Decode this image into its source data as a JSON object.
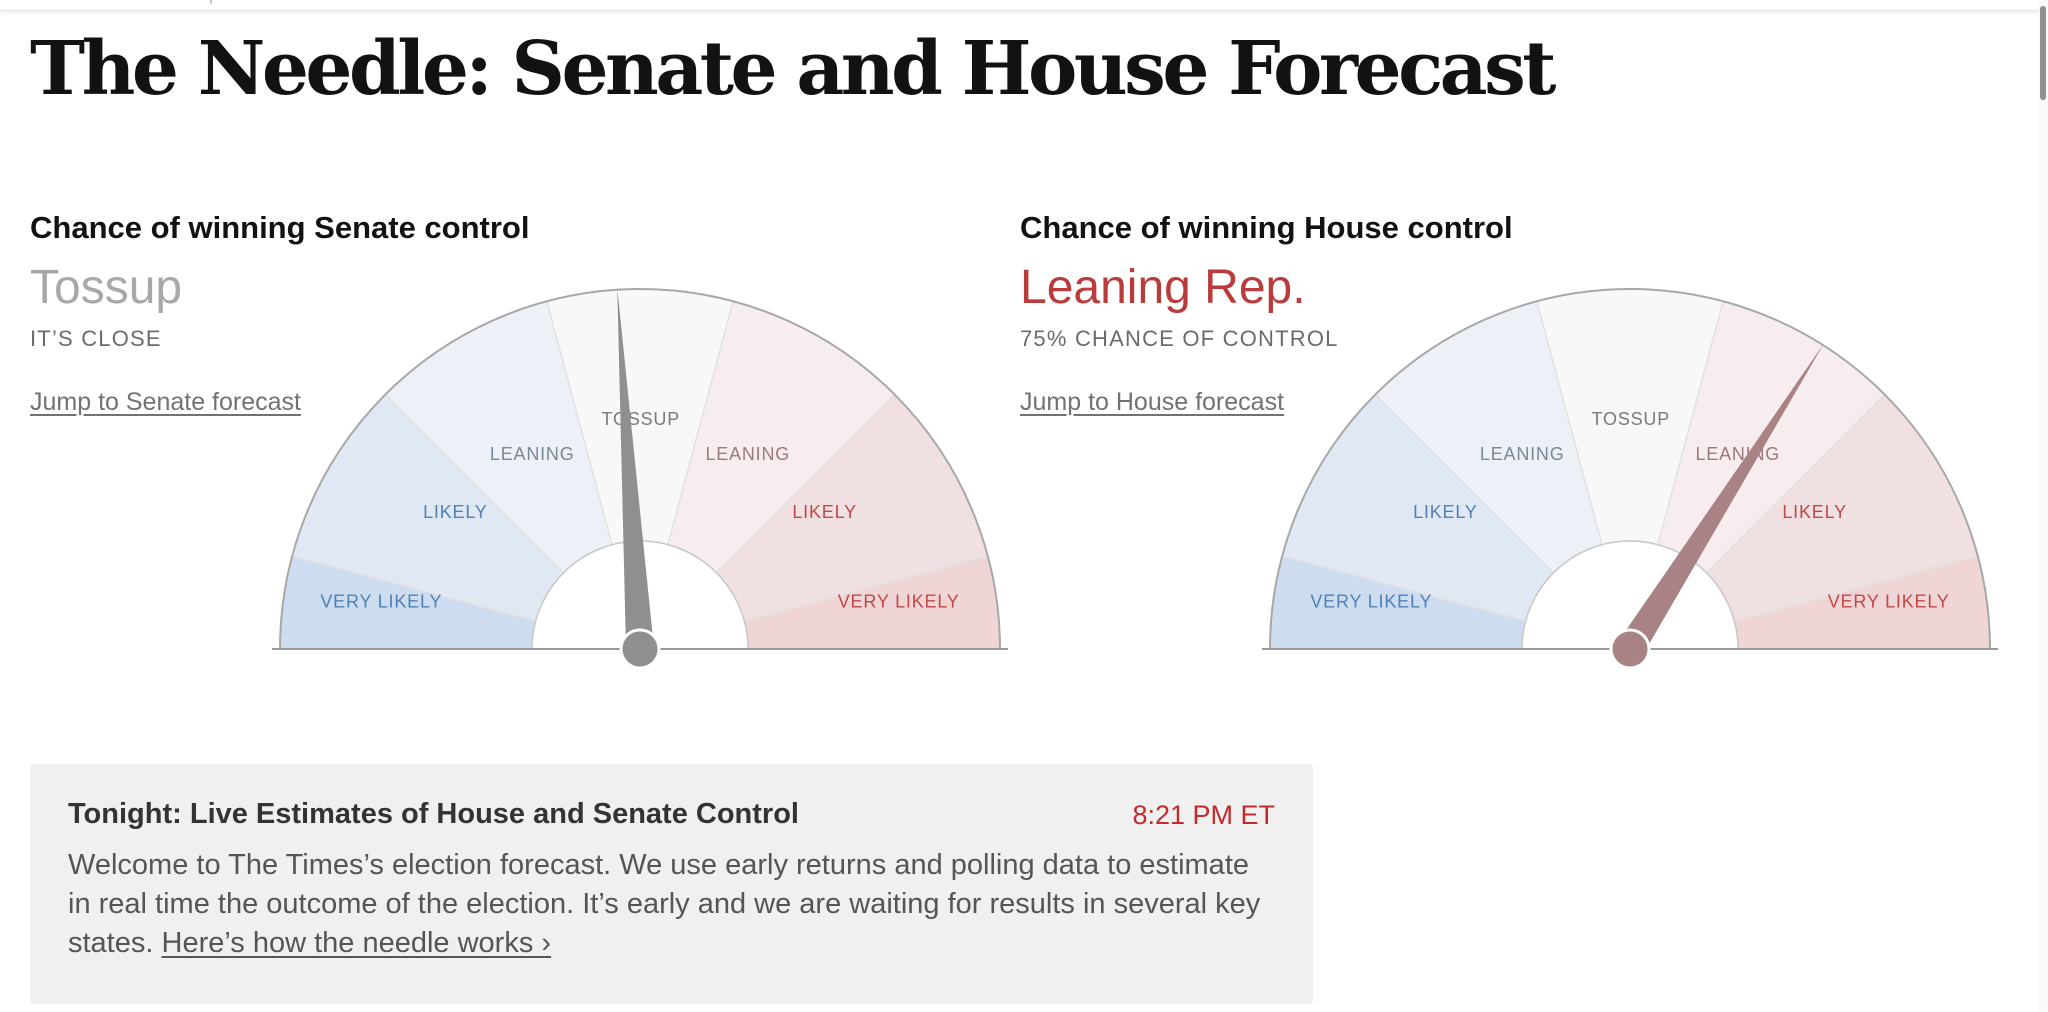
{
  "page": {
    "title": "The Needle: Senate and House Forecast"
  },
  "colors": {
    "dem_very_likely": "#cddcef",
    "dem_likely": "#e0e8f3",
    "dem_leaning": "#edf1f7",
    "tossup": "#f8f8f8",
    "rep_leaning": "#f8edee",
    "rep_likely": "#f1e0e1",
    "rep_very_likely": "#efd5d5",
    "dem_label": "#4e82b6",
    "dem_leaning_label": "#7a8796",
    "tossup_label": "#7a7a7a",
    "rep_label": "#c24848",
    "rep_leaning_label": "#9a7a7c",
    "senate_status": "#a8a8a8",
    "house_status": "#b93b3b",
    "senate_needle": "#8f8f8f",
    "house_needle": "#a88285",
    "time": "#c22b2b"
  },
  "gauge_labels": {
    "very_likely": "VERY LIKELY",
    "likely": "LIKELY",
    "leaning": "LEANING",
    "tossup": "TOSSUP"
  },
  "senate": {
    "heading": "Chance of winning Senate control",
    "status": "Tossup",
    "sub": "IT’S CLOSE",
    "jump_link": "Jump to Senate forecast",
    "needle_fraction_rep": 0.48
  },
  "house": {
    "heading": "Chance of winning House control",
    "status": "Leaning Rep.",
    "sub": "75% CHANCE OF CONTROL",
    "jump_link": "Jump to House forecast",
    "needle_fraction_rep": 0.68
  },
  "update": {
    "heading": "Tonight: Live Estimates of House and Senate Control",
    "time": "8:21 PM ET",
    "body": "Welcome to The Times’s election forecast. We use early returns and polling data to estimate in real time the outcome of the election. It’s early and we are waiting for results in several key states. ",
    "link": "Here’s how the needle works ›"
  }
}
